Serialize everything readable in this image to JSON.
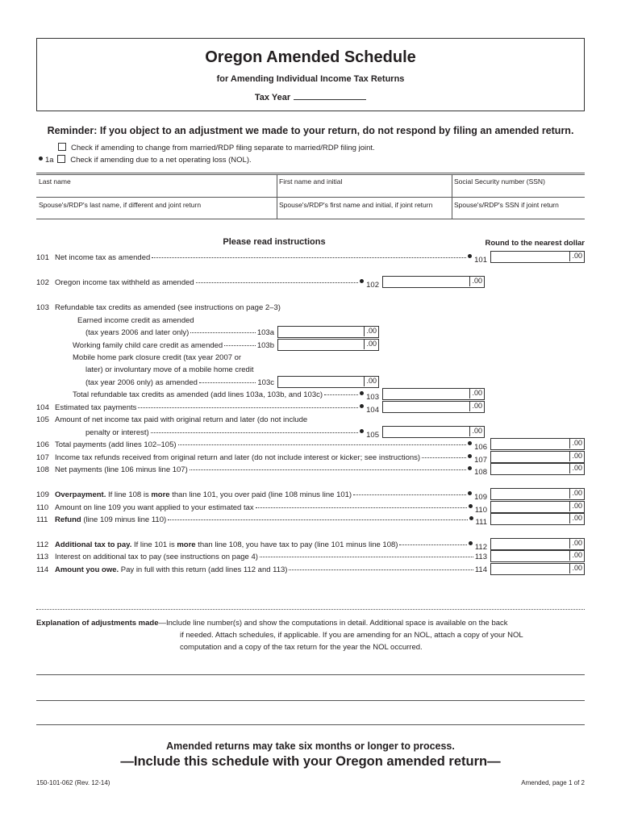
{
  "header": {
    "title": "Oregon Amended Schedule",
    "subtitle": "for Amending Individual Income Tax Returns",
    "tax_year_label": "Tax Year"
  },
  "reminder": "Reminder: If you object to an adjustment we made to your return, do not respond by filing an amended return.",
  "checkboxes": [
    {
      "prefix": "",
      "label": "Check if amending to change from married/RDP filing separate to married/RDP filing joint.",
      "checked": false
    },
    {
      "prefix": "1a",
      "label": "Check if amending due to a net operating loss (NOL).",
      "checked": false
    }
  ],
  "id_table": {
    "last_name": "Last name",
    "first_name": "First name and initial",
    "ssn": "Social Security number (SSN)",
    "spouse_last_name": "Spouse's/RDP's last name, if different and joint return",
    "spouse_first_name": "Spouse's/RDP's first name and initial, if joint return",
    "spouse_ssn": "Spouse's/RDP's SSN if joint return"
  },
  "instructions_heading": "Please read instructions",
  "round_note": "Round to the nearest dollar",
  "cents": ".00",
  "lines": [
    {
      "num": "101",
      "text": [
        {
          "t": "Net income tax as amended",
          "b": false
        }
      ],
      "ref": "101",
      "bullet": true
    },
    {
      "num": "102",
      "text": [
        {
          "t": "Oregon income tax withheld as amended",
          "b": false
        }
      ],
      "ref": "102",
      "bullet": true
    },
    {
      "num": "103",
      "text": [
        {
          "t": "Refundable tax credits as amended (see instructions on page 2–3)",
          "b": false
        }
      ],
      "ref": "",
      "bullet": false
    },
    {
      "num": "",
      "text": [
        {
          "t": "Earned income credit as amended",
          "b": false
        }
      ],
      "ref": "",
      "bullet": false
    },
    {
      "num": "",
      "text": [
        {
          "t": "(tax years 2006 and later only)",
          "b": false
        }
      ],
      "ref": "103a",
      "bullet": false
    },
    {
      "num": "",
      "text": [
        {
          "t": "Working family child care credit as amended",
          "b": false
        }
      ],
      "ref": "103b",
      "bullet": false
    },
    {
      "num": "",
      "text": [
        {
          "t": "Mobile home park closure credit (tax year 2007 or",
          "b": false
        }
      ],
      "ref": "",
      "bullet": false
    },
    {
      "num": "",
      "text": [
        {
          "t": "later) or involuntary move of a mobile home credit",
          "b": false
        }
      ],
      "ref": "",
      "bullet": false
    },
    {
      "num": "",
      "text": [
        {
          "t": "(tax year 2006 only) as amended",
          "b": false
        }
      ],
      "ref": "103c",
      "bullet": false
    },
    {
      "num": "",
      "text": [
        {
          "t": "Total refundable tax credits as amended (add lines 103a, 103b, and 103c)",
          "b": false
        }
      ],
      "ref": "103",
      "bullet": true
    },
    {
      "num": "104",
      "text": [
        {
          "t": "Estimated tax payments",
          "b": false
        }
      ],
      "ref": "104",
      "bullet": true
    },
    {
      "num": "105",
      "text": [
        {
          "t": "Amount of net income tax paid with original return and later (do not include",
          "b": false
        }
      ],
      "ref": "",
      "bullet": false
    },
    {
      "num": "",
      "text": [
        {
          "t": "penalty or interest)",
          "b": false
        }
      ],
      "ref": "105",
      "bullet": true
    },
    {
      "num": "106",
      "text": [
        {
          "t": "Total payments (add lines 102–105)",
          "b": false
        }
      ],
      "ref": "106",
      "bullet": true
    },
    {
      "num": "107",
      "text": [
        {
          "t": "Income tax refunds received from original return and later (do not include interest or kicker; see instructions)",
          "b": false
        }
      ],
      "ref": "107",
      "bullet": true
    },
    {
      "num": "108",
      "text": [
        {
          "t": "Net payments (line 106 minus line 107)",
          "b": false
        }
      ],
      "ref": "108",
      "bullet": true
    },
    {
      "num": "109",
      "text": [
        {
          "t": "Overpayment.",
          "b": true
        },
        {
          "t": " If line 108 is ",
          "b": false
        },
        {
          "t": "more",
          "b": true
        },
        {
          "t": " than line 101, you over paid (line 108 minus line 101)",
          "b": false
        }
      ],
      "ref": "109",
      "bullet": true
    },
    {
      "num": "110",
      "text": [
        {
          "t": "Amount on line 109 you want applied to your estimated tax",
          "b": false
        }
      ],
      "ref": "110",
      "bullet": true
    },
    {
      "num": "111",
      "text": [
        {
          "t": "Refund",
          "b": true
        },
        {
          "t": " (line 109 minus line 110)",
          "b": false
        }
      ],
      "ref": "111",
      "bullet": true
    },
    {
      "num": "112",
      "text": [
        {
          "t": "Additional tax to pay.",
          "b": true
        },
        {
          "t": " If line 101 is ",
          "b": false
        },
        {
          "t": "more",
          "b": true
        },
        {
          "t": " than line 108, you have tax to pay (line 101 minus line 108)",
          "b": false
        }
      ],
      "ref": "112",
      "bullet": true
    },
    {
      "num": "113",
      "text": [
        {
          "t": "Interest on additional tax to pay (see instructions on page 4)",
          "b": false
        }
      ],
      "ref": "113",
      "bullet": false
    },
    {
      "num": "114",
      "text": [
        {
          "t": "Amount you owe.",
          "b": true
        },
        {
          "t": " Pay in full with this return (add lines 112 and 113)",
          "b": false
        }
      ],
      "ref": "114",
      "bullet": false
    }
  ],
  "explanation": {
    "label": "Explanation of adjustments made",
    "text1": "—Include line number(s) and show the computations in detail. Additional space is available on the back",
    "text2": "if needed. Attach schedules, if applicable. If you are amending for an NOL, attach a copy of your NOL",
    "text3": "computation and a copy of the tax return for the year the NOL occurred."
  },
  "footer": {
    "notice": "Amended returns may take six months or longer to process.",
    "include": "—Include this schedule with your Oregon amended return—",
    "form_number": "150-101-062 (Rev. 12-14)",
    "page": "Amended, page 1 of 2"
  }
}
